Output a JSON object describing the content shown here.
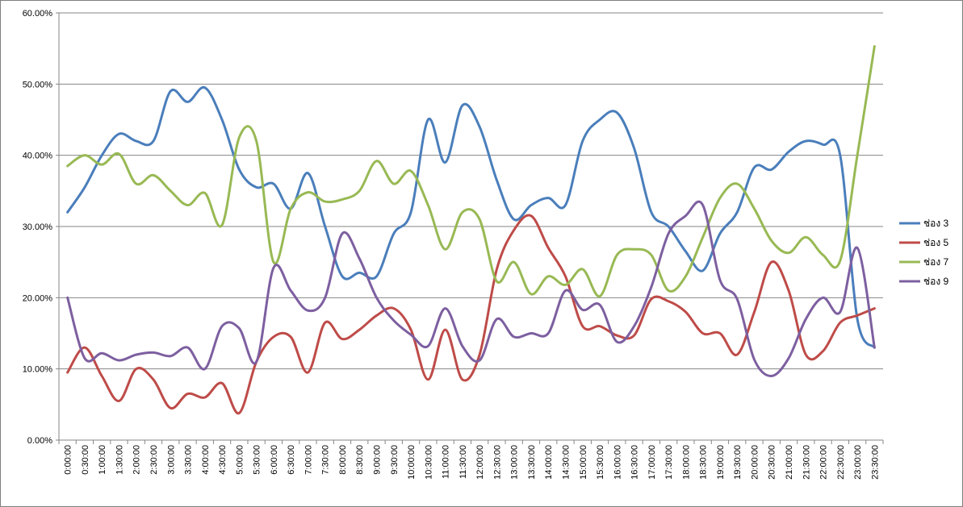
{
  "chart_data": {
    "type": "line",
    "title": "",
    "xlabel": "",
    "ylabel": "",
    "ylim": [
      0,
      60
    ],
    "y_format": "percent_2dp",
    "yticks": [
      "0.00%",
      "10.00%",
      "20.00%",
      "30.00%",
      "40.00%",
      "50.00%",
      "60.00%"
    ],
    "grid": "horizontal",
    "legend_position": "right",
    "categories": [
      "0:00:00",
      "0:30:00",
      "1:00:00",
      "1:30:00",
      "2:00:00",
      "2:30:00",
      "3:00:00",
      "3:30:00",
      "4:00:00",
      "4:30:00",
      "5:00:00",
      "5:30:00",
      "6:00:00",
      "6:30:00",
      "7:00:00",
      "7:30:00",
      "8:00:00",
      "8:30:00",
      "9:00:00",
      "9:30:00",
      "10:00:00",
      "10:30:00",
      "11:00:00",
      "11:30:00",
      "12:00:00",
      "12:30:00",
      "13:00:00",
      "13:30:00",
      "14:00:00",
      "14:30:00",
      "15:00:00",
      "15:30:00",
      "16:00:00",
      "16:30:00",
      "17:00:00",
      "17:30:00",
      "18:00:00",
      "18:30:00",
      "19:00:00",
      "19:30:00",
      "20:00:00",
      "20:30:00",
      "21:00:00",
      "21:30:00",
      "22:00:00",
      "22:30:00",
      "23:00:00",
      "23:30:00"
    ],
    "series": [
      {
        "name": "ช่อง 3",
        "color": "#4a7ebb",
        "values": [
          32,
          35.5,
          40,
          43,
          42,
          42,
          49,
          47.5,
          49.5,
          45,
          38,
          35.5,
          36,
          32.5,
          37.5,
          30,
          23,
          23.5,
          23,
          29,
          32,
          45,
          39,
          47,
          44,
          36.5,
          31,
          33,
          34,
          33,
          42,
          45,
          46,
          41,
          32,
          30,
          26.5,
          23.8,
          29,
          32,
          38.3,
          38,
          40.5,
          42,
          41.5,
          40,
          17,
          13
        ]
      },
      {
        "name": "ช่อง 5",
        "color": "#be4b48",
        "values": [
          9.5,
          13,
          9,
          5.5,
          10,
          8.5,
          4.5,
          6.5,
          6,
          8,
          3.8,
          11,
          14.5,
          14.5,
          9.5,
          16.5,
          14.2,
          15.5,
          17.5,
          18.5,
          15.5,
          8.5,
          15.5,
          8.5,
          12,
          24,
          29.5,
          31.5,
          27,
          23,
          16,
          16,
          14.7,
          14.7,
          19.8,
          19.5,
          18,
          15,
          15,
          12,
          18,
          25,
          21,
          12,
          12.5,
          16.5,
          17.5,
          18.5
        ]
      },
      {
        "name": "ช่อง 7",
        "color": "#98b954",
        "values": [
          38.5,
          40,
          38.7,
          40.2,
          36,
          37.2,
          35,
          33,
          34.7,
          30.2,
          42.5,
          42,
          25,
          32.5,
          34.8,
          33.5,
          33.8,
          35,
          39.2,
          36,
          37.8,
          33,
          26.8,
          32,
          31,
          22.3,
          25,
          20.5,
          23,
          21.8,
          24,
          20.2,
          26,
          26.8,
          26,
          21,
          23,
          28.5,
          34,
          36,
          32.5,
          28,
          26.3,
          28.5,
          26,
          25.2,
          40,
          55.3
        ]
      },
      {
        "name": "ช่อง 9",
        "color": "#7d5fa0",
        "values": [
          20,
          11.5,
          12.2,
          11.2,
          12,
          12.3,
          11.8,
          13,
          10,
          16,
          15.7,
          11,
          24.2,
          21,
          18.2,
          20,
          29,
          25.5,
          20,
          16.8,
          14.8,
          13.2,
          18.5,
          13.2,
          11.2,
          17,
          14.5,
          15,
          15,
          21,
          18.3,
          19,
          13.8,
          16,
          21.5,
          29,
          31.5,
          33,
          22.5,
          19.8,
          11.3,
          9,
          11.5,
          17,
          20,
          18,
          27,
          13
        ]
      }
    ]
  }
}
